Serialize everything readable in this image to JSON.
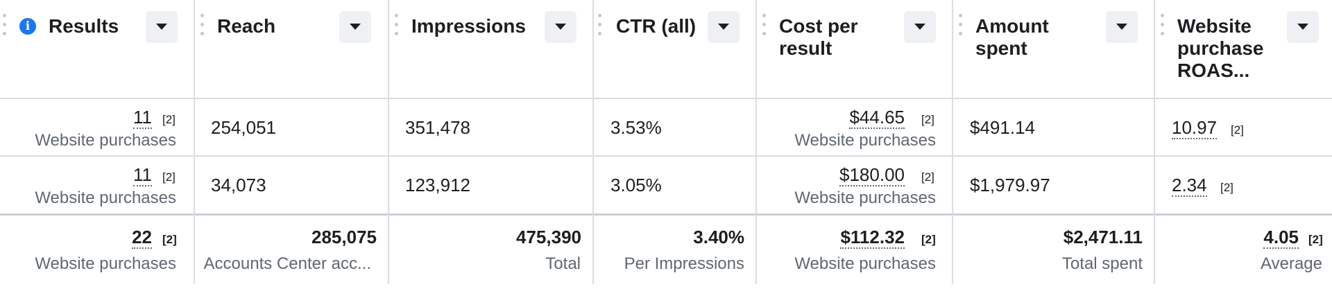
{
  "columns": [
    {
      "key": "results",
      "title": "Results"
    },
    {
      "key": "reach",
      "title": "Reach"
    },
    {
      "key": "impressions",
      "title": "Impressions"
    },
    {
      "key": "ctr",
      "title": "CTR (all)"
    },
    {
      "key": "cpr",
      "title": "Cost per\nresult"
    },
    {
      "key": "spent",
      "title": "Amount\nspent"
    },
    {
      "key": "roas",
      "title": "Website\npurchase\nROAS..."
    }
  ],
  "rows": [
    {
      "results": {
        "value": "11",
        "note": "[2]",
        "sub": "Website purchases"
      },
      "reach": {
        "value": "254,051"
      },
      "impressions": {
        "value": "351,478"
      },
      "ctr": {
        "value": "3.53%"
      },
      "cpr": {
        "value": "$44.65",
        "note": "[2]",
        "sub": "Website purchases"
      },
      "spent": {
        "value": "$491.14"
      },
      "roas": {
        "value": "10.97",
        "note": "[2]"
      }
    },
    {
      "results": {
        "value": "11",
        "note": "[2]",
        "sub": "Website purchases"
      },
      "reach": {
        "value": "34,073"
      },
      "impressions": {
        "value": "123,912"
      },
      "ctr": {
        "value": "3.05%"
      },
      "cpr": {
        "value": "$180.00",
        "note": "[2]",
        "sub": "Website purchases"
      },
      "spent": {
        "value": "$1,979.97"
      },
      "roas": {
        "value": "2.34",
        "note": "[2]"
      }
    }
  ],
  "totals": {
    "results": {
      "value": "22",
      "note": "[2]",
      "sub": "Website purchases"
    },
    "reach": {
      "value": "285,075",
      "sub": "Accounts Center acc..."
    },
    "impressions": {
      "value": "475,390",
      "sub": "Total"
    },
    "ctr": {
      "value": "3.40%",
      "sub": "Per Impressions"
    },
    "cpr": {
      "value": "$112.32",
      "note": "[2]",
      "sub": "Website purchases"
    },
    "spent": {
      "value": "$2,471.11",
      "sub": "Total spent"
    },
    "roas": {
      "value": "4.05",
      "note": "[2]",
      "sub": "Average"
    }
  },
  "icons": {
    "info": "info-icon",
    "dropdown": "chevron-down-icon",
    "drag": "drag-handle-icon"
  },
  "colors": {
    "info_blue": "#1877f2",
    "border": "#dadde1",
    "muted_text": "#606770"
  }
}
